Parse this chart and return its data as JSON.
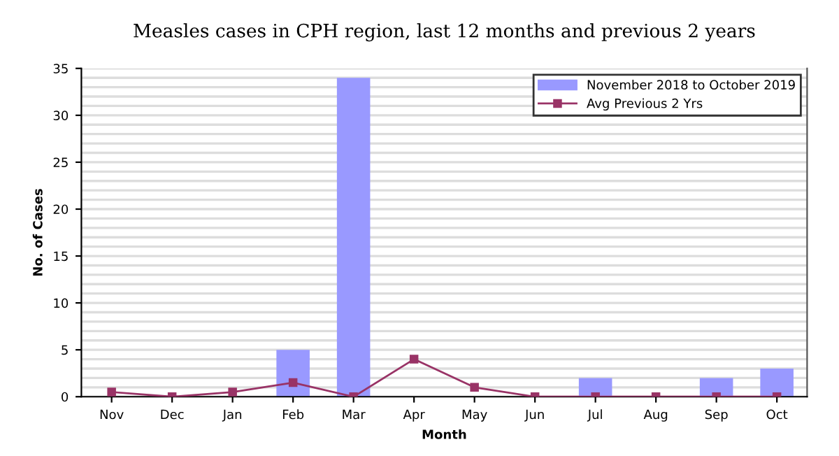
{
  "chart_data": {
    "type": "bar",
    "title": "Measles cases in CPH region, last 12 months and previous 2 years",
    "xlabel": "Month",
    "ylabel": "No. of Cases",
    "categories": [
      "Nov",
      "Dec",
      "Jan",
      "Feb",
      "Mar",
      "Apr",
      "May",
      "Jun",
      "Jul",
      "Aug",
      "Sep",
      "Oct"
    ],
    "series": [
      {
        "name": "November 2018 to October 2019",
        "color": "#9999ff",
        "values": [
          null,
          null,
          null,
          5,
          34,
          null,
          null,
          null,
          2,
          null,
          2,
          3
        ]
      },
      {
        "name": "Avg Previous 2 Yrs",
        "type": "line",
        "color": "#993366",
        "marker": "square",
        "values": [
          0.5,
          0,
          0.5,
          1.5,
          0,
          4,
          1,
          0,
          0,
          0,
          0,
          0
        ]
      }
    ],
    "ylim": [
      0,
      35
    ],
    "yticks": [
      0,
      {
        "value": 1,
        "label": null
      },
      {
        "value": 2,
        "label": null
      },
      {
        "value": 3,
        "label": null
      },
      {
        "value": 4,
        "label": null
      },
      5,
      {
        "value": 6,
        "label": null
      },
      {
        "value": 7,
        "label": null
      },
      {
        "value": 8,
        "label": null
      },
      {
        "value": 9,
        "label": null
      },
      10,
      {
        "value": 11,
        "label": null
      },
      {
        "value": 12,
        "label": null
      },
      {
        "value": 13,
        "label": null
      },
      {
        "value": 14,
        "label": null
      },
      15,
      {
        "value": 16,
        "label": null
      },
      {
        "value": 17,
        "label": null
      },
      {
        "value": 18,
        "label": null
      },
      {
        "value": 19,
        "label": null
      },
      20,
      {
        "value": 21,
        "label": null
      },
      {
        "value": 22,
        "label": null
      },
      {
        "value": 23,
        "label": null
      },
      {
        "value": 24,
        "label": null
      },
      25,
      {
        "value": 26,
        "label": null
      },
      {
        "value": 27,
        "label": null
      },
      {
        "value": 28,
        "label": null
      },
      {
        "value": 29,
        "label": null
      },
      30,
      {
        "value": 31,
        "label": null
      },
      {
        "value": 32,
        "label": null
      },
      {
        "value": 33,
        "label": null
      },
      {
        "value": 34,
        "label": null
      },
      35
    ],
    "grid": "y",
    "legend": "top right"
  }
}
